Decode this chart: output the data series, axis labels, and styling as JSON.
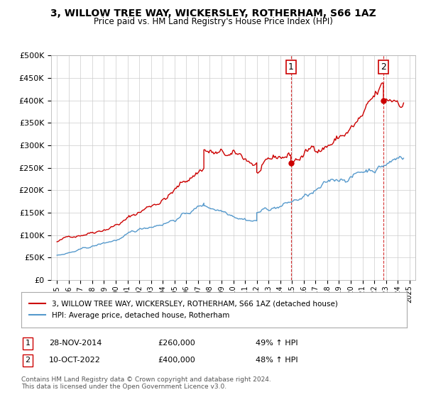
{
  "title": "3, WILLOW TREE WAY, WICKERSLEY, ROTHERHAM, S66 1AZ",
  "subtitle": "Price paid vs. HM Land Registry's House Price Index (HPI)",
  "legend_line1": "3, WILLOW TREE WAY, WICKERSLEY, ROTHERHAM, S66 1AZ (detached house)",
  "legend_line2": "HPI: Average price, detached house, Rotherham",
  "footer": "Contains HM Land Registry data © Crown copyright and database right 2024.\nThis data is licensed under the Open Government Licence v3.0.",
  "annotation1": {
    "label": "1",
    "date": "28-NOV-2014",
    "price": "£260,000",
    "pct": "49% ↑ HPI"
  },
  "annotation2": {
    "label": "2",
    "date": "10-OCT-2022",
    "price": "£400,000",
    "pct": "48% ↑ HPI"
  },
  "red_line_color": "#cc0000",
  "blue_line_color": "#5599cc",
  "marker1_x": 2014.9,
  "marker2_x": 2022.78,
  "marker1_y": 260000,
  "marker2_y": 400000,
  "ylim": [
    0,
    500000
  ],
  "xlim": [
    1994.5,
    2025.5
  ],
  "yticks": [
    0,
    50000,
    100000,
    150000,
    200000,
    250000,
    300000,
    350000,
    400000,
    450000,
    500000
  ],
  "background_color": "#ffffff",
  "grid_color": "#cccccc"
}
